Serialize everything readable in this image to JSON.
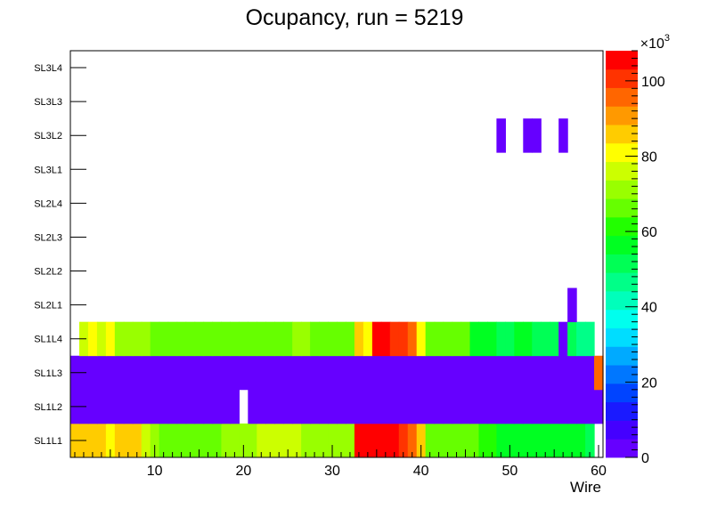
{
  "chart_data": {
    "type": "heatmap",
    "title": "Ocupancy, run = 5219",
    "xlabel": "Wire",
    "ylabel": "",
    "xlim": [
      0.5,
      60.5
    ],
    "x_ticks": [
      10,
      20,
      30,
      40,
      50,
      60
    ],
    "y_categories": [
      "SL1L1",
      "SL1L2",
      "SL1L3",
      "SL1L4",
      "SL2L1",
      "SL2L2",
      "SL2L3",
      "SL2L4",
      "SL3L1",
      "SL3L2",
      "SL3L3",
      "SL3L4"
    ],
    "z_range": [
      0,
      108000
    ],
    "z_ticks": [
      0,
      20,
      40,
      60,
      80,
      100
    ],
    "z_multiplier_label": "×10",
    "z_multiplier_exp": "3",
    "z_palette": [
      "#6600ff",
      "#4400ff",
      "#1a1aff",
      "#0044ff",
      "#0077ff",
      "#00aaff",
      "#00ddff",
      "#00ffee",
      "#00ffbb",
      "#00ff88",
      "#00ff55",
      "#00ff22",
      "#22ff00",
      "#66ff00",
      "#99ff00",
      "#ccff00",
      "#ffff00",
      "#ffcc00",
      "#ff9900",
      "#ff6600",
      "#ff3300",
      "#ff0000"
    ],
    "rows": [
      {
        "layer": "SL1L1",
        "values": [
          86000,
          86000,
          86000,
          86000,
          79000,
          86000,
          86000,
          86000,
          75000,
          71000,
          64000,
          64000,
          64000,
          68000,
          68000,
          64000,
          64000,
          72000,
          72000,
          72000,
          72000,
          76000,
          76000,
          76000,
          76000,
          76000,
          72000,
          72000,
          72000,
          72000,
          72000,
          72000,
          107000,
          107000,
          107000,
          107000,
          107000,
          102000,
          98000,
          86000,
          64000,
          64000,
          64000,
          64000,
          64000,
          64000,
          60000,
          60000,
          56000,
          56000,
          56000,
          56000,
          56000,
          56000,
          56000,
          56000,
          56000,
          56000,
          52000,
          0
        ]
      },
      {
        "layer": "SL1L2",
        "values": [
          4000,
          4000,
          4000,
          4000,
          4000,
          4000,
          4000,
          4000,
          4000,
          4000,
          4000,
          4000,
          4000,
          4000,
          4000,
          4000,
          4000,
          4000,
          4000,
          0,
          4000,
          4000,
          4000,
          4000,
          4000,
          4000,
          4000,
          4000,
          4000,
          4000,
          4000,
          4000,
          4000,
          4000,
          4000,
          4000,
          4000,
          4000,
          4000,
          4000,
          4000,
          4000,
          4000,
          4000,
          4000,
          4000,
          4000,
          4000,
          4000,
          4000,
          4000,
          4000,
          4000,
          4000,
          4000,
          4000,
          4000,
          4000,
          4000,
          4000
        ]
      },
      {
        "layer": "SL1L3",
        "values": [
          4000,
          4000,
          4000,
          4000,
          4000,
          4000,
          4000,
          4000,
          4000,
          4000,
          4000,
          4000,
          4000,
          4000,
          4000,
          4000,
          4000,
          4000,
          4000,
          4000,
          4000,
          4000,
          4000,
          4000,
          4000,
          4000,
          4000,
          4000,
          4000,
          4000,
          4000,
          4000,
          4000,
          4000,
          4000,
          4000,
          4000,
          4000,
          4000,
          4000,
          4000,
          4000,
          4000,
          4000,
          4000,
          4000,
          4000,
          4000,
          4000,
          4000,
          4000,
          4000,
          4000,
          4000,
          4000,
          4000,
          4000,
          4000,
          4000,
          94000
        ]
      },
      {
        "layer": "SL1L4",
        "values": [
          0,
          75000,
          79000,
          75000,
          79000,
          72000,
          72000,
          72000,
          72000,
          68000,
          64000,
          64000,
          68000,
          68000,
          64000,
          64000,
          64000,
          64000,
          68000,
          68000,
          68000,
          68000,
          68000,
          68000,
          68000,
          72000,
          72000,
          64000,
          64000,
          64000,
          64000,
          64000,
          86000,
          83000,
          107000,
          107000,
          102000,
          102000,
          94000,
          83000,
          64000,
          64000,
          64000,
          64000,
          64000,
          56000,
          56000,
          56000,
          52000,
          52000,
          56000,
          56000,
          52000,
          52000,
          52000,
          4000,
          52000,
          45000,
          45000,
          0
        ]
      },
      {
        "layer": "SL2L1",
        "values": [
          0,
          0,
          0,
          0,
          0,
          0,
          0,
          0,
          0,
          0,
          0,
          0,
          0,
          0,
          0,
          0,
          0,
          0,
          0,
          0,
          0,
          0,
          0,
          0,
          0,
          0,
          0,
          0,
          0,
          0,
          0,
          0,
          0,
          0,
          0,
          0,
          0,
          0,
          0,
          0,
          0,
          0,
          0,
          0,
          0,
          0,
          0,
          0,
          0,
          0,
          0,
          0,
          0,
          0,
          0,
          0,
          1000,
          0,
          0,
          0
        ]
      },
      {
        "layer": "SL2L2",
        "values": [
          0,
          0,
          0,
          0,
          0,
          0,
          0,
          0,
          0,
          0,
          0,
          0,
          0,
          0,
          0,
          0,
          0,
          0,
          0,
          0,
          0,
          0,
          0,
          0,
          0,
          0,
          0,
          0,
          0,
          0,
          0,
          0,
          0,
          0,
          0,
          0,
          0,
          0,
          0,
          0,
          0,
          0,
          0,
          0,
          0,
          0,
          0,
          0,
          0,
          0,
          0,
          0,
          0,
          0,
          0,
          0,
          0,
          0,
          0,
          0
        ]
      },
      {
        "layer": "SL2L3",
        "values": [
          0,
          0,
          0,
          0,
          0,
          0,
          0,
          0,
          0,
          0,
          0,
          0,
          0,
          0,
          0,
          0,
          0,
          0,
          0,
          0,
          0,
          0,
          0,
          0,
          0,
          0,
          0,
          0,
          0,
          0,
          0,
          0,
          0,
          0,
          0,
          0,
          0,
          0,
          0,
          0,
          0,
          0,
          0,
          0,
          0,
          0,
          0,
          0,
          0,
          0,
          0,
          0,
          0,
          0,
          0,
          0,
          0,
          0,
          0,
          0
        ]
      },
      {
        "layer": "SL2L4",
        "values": [
          0,
          0,
          0,
          0,
          0,
          0,
          0,
          0,
          0,
          0,
          0,
          0,
          0,
          0,
          0,
          0,
          0,
          0,
          0,
          0,
          0,
          0,
          0,
          0,
          0,
          0,
          0,
          0,
          0,
          0,
          0,
          0,
          0,
          0,
          0,
          0,
          0,
          0,
          0,
          0,
          0,
          0,
          0,
          0,
          0,
          0,
          0,
          0,
          0,
          0,
          0,
          0,
          0,
          0,
          0,
          0,
          0,
          0,
          0,
          0
        ]
      },
      {
        "layer": "SL3L1",
        "values": [
          0,
          0,
          0,
          0,
          0,
          0,
          0,
          0,
          0,
          0,
          0,
          0,
          0,
          0,
          0,
          0,
          0,
          0,
          0,
          0,
          0,
          0,
          0,
          0,
          0,
          0,
          0,
          0,
          0,
          0,
          0,
          0,
          0,
          0,
          0,
          0,
          0,
          0,
          0,
          0,
          0,
          0,
          0,
          0,
          0,
          0,
          0,
          0,
          0,
          0,
          0,
          0,
          0,
          0,
          0,
          0,
          0,
          0,
          0,
          0
        ]
      },
      {
        "layer": "SL3L2",
        "values": [
          0,
          0,
          0,
          0,
          0,
          0,
          0,
          0,
          0,
          0,
          0,
          0,
          0,
          0,
          0,
          0,
          0,
          0,
          0,
          0,
          0,
          0,
          0,
          0,
          0,
          0,
          0,
          0,
          0,
          0,
          0,
          0,
          0,
          0,
          0,
          0,
          0,
          0,
          0,
          0,
          0,
          0,
          0,
          0,
          0,
          0,
          0,
          0,
          1000,
          0,
          0,
          1000,
          1000,
          0,
          0,
          1000,
          0,
          0,
          0,
          0
        ]
      },
      {
        "layer": "SL3L3",
        "values": [
          0,
          0,
          0,
          0,
          0,
          0,
          0,
          0,
          0,
          0,
          0,
          0,
          0,
          0,
          0,
          0,
          0,
          0,
          0,
          0,
          0,
          0,
          0,
          0,
          0,
          0,
          0,
          0,
          0,
          0,
          0,
          0,
          0,
          0,
          0,
          0,
          0,
          0,
          0,
          0,
          0,
          0,
          0,
          0,
          0,
          0,
          0,
          0,
          0,
          0,
          0,
          0,
          0,
          0,
          0,
          0,
          0,
          0,
          0,
          0
        ]
      },
      {
        "layer": "SL3L4",
        "values": [
          0,
          0,
          0,
          0,
          0,
          0,
          0,
          0,
          0,
          0,
          0,
          0,
          0,
          0,
          0,
          0,
          0,
          0,
          0,
          0,
          0,
          0,
          0,
          0,
          0,
          0,
          0,
          0,
          0,
          0,
          0,
          0,
          0,
          0,
          0,
          0,
          0,
          0,
          0,
          0,
          0,
          0,
          0,
          0,
          0,
          0,
          0,
          0,
          0,
          0,
          0,
          0,
          0,
          0,
          0,
          0,
          0,
          0,
          0,
          0
        ]
      }
    ],
    "grid": false,
    "legend": "colorbar-right"
  }
}
